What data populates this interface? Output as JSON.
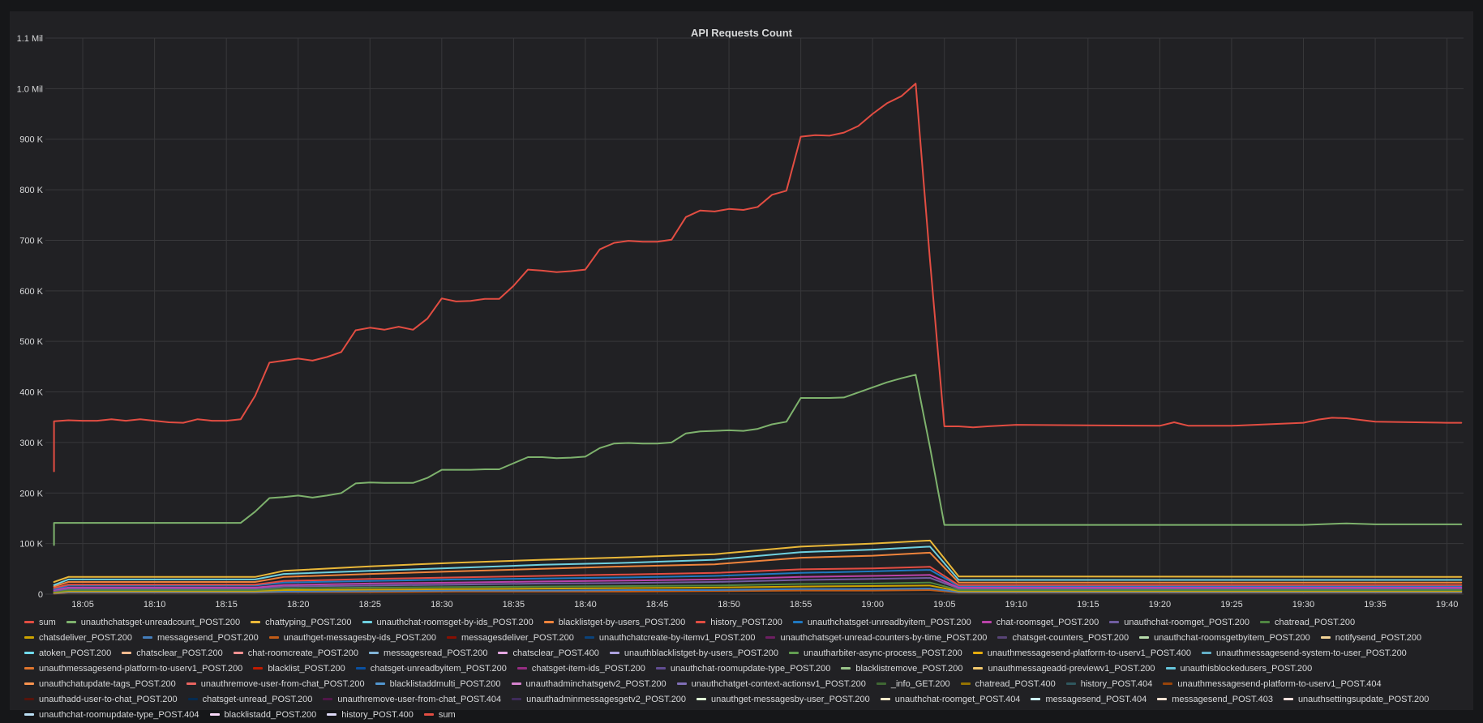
{
  "panel": {
    "title": "API Requests Count"
  },
  "chart_data": {
    "type": "line",
    "title": "API Requests Count",
    "xlabel": "",
    "ylabel": "",
    "ylim": [
      0,
      1100000
    ],
    "y_ticks": [
      {
        "value": 0,
        "label": "0"
      },
      {
        "value": 100000,
        "label": "100 K"
      },
      {
        "value": 200000,
        "label": "200 K"
      },
      {
        "value": 300000,
        "label": "300 K"
      },
      {
        "value": 400000,
        "label": "400 K"
      },
      {
        "value": 500000,
        "label": "500 K"
      },
      {
        "value": 600000,
        "label": "600 K"
      },
      {
        "value": 700000,
        "label": "700 K"
      },
      {
        "value": 800000,
        "label": "800 K"
      },
      {
        "value": 900000,
        "label": "900 K"
      },
      {
        "value": 1000000,
        "label": "1.0 Mil"
      },
      {
        "value": 1100000,
        "label": "1.1 Mil"
      }
    ],
    "xlim": [
      "18:03",
      "19:41"
    ],
    "x_ticks": [
      "18:05",
      "18:10",
      "18:15",
      "18:20",
      "18:25",
      "18:30",
      "18:35",
      "18:40",
      "18:45",
      "18:50",
      "18:55",
      "19:00",
      "19:05",
      "19:10",
      "19:15",
      "19:20",
      "19:25",
      "19:30",
      "19:35",
      "19:40"
    ],
    "grid": true,
    "legend_position": "bottom",
    "x_unit": "HH:MM",
    "series": [
      {
        "name": "sum",
        "color": "#e24d42",
        "x": [
          "18:03",
          "18:03",
          "18:04",
          "18:05",
          "18:06",
          "18:07",
          "18:08",
          "18:09",
          "18:10",
          "18:11",
          "18:12",
          "18:13",
          "18:14",
          "18:15",
          "18:16",
          "18:17",
          "18:18",
          "18:19",
          "18:20",
          "18:21",
          "18:22",
          "18:23",
          "18:24",
          "18:25",
          "18:26",
          "18:27",
          "18:28",
          "18:29",
          "18:30",
          "18:31",
          "18:32",
          "18:33",
          "18:34",
          "18:35",
          "18:36",
          "18:37",
          "18:38",
          "18:39",
          "18:40",
          "18:41",
          "18:42",
          "18:43",
          "18:44",
          "18:45",
          "18:46",
          "18:47",
          "18:48",
          "18:49",
          "18:50",
          "18:51",
          "18:52",
          "18:53",
          "18:54",
          "18:55",
          "18:56",
          "18:57",
          "18:58",
          "18:59",
          "19:00",
          "19:01",
          "19:02",
          "19:03",
          "19:04",
          "19:05",
          "19:06",
          "19:07",
          "19:08",
          "19:10",
          "19:15",
          "19:20",
          "19:21",
          "19:22",
          "19:25",
          "19:30",
          "19:31",
          "19:32",
          "19:33",
          "19:35",
          "19:40",
          "19:41"
        ],
        "y": [
          243000,
          342000,
          344000,
          343000,
          343000,
          346000,
          343000,
          346000,
          343000,
          340000,
          339000,
          346000,
          343000,
          343000,
          346000,
          392000,
          458000,
          462000,
          466000,
          462000,
          469000,
          479000,
          522000,
          527000,
          523000,
          529000,
          523000,
          545000,
          585000,
          579000,
          580000,
          584000,
          584000,
          610000,
          642000,
          640000,
          637000,
          639000,
          642000,
          682000,
          695000,
          699000,
          697000,
          697000,
          701000,
          746000,
          759000,
          757000,
          762000,
          760000,
          766000,
          790000,
          798000,
          905000,
          908000,
          907000,
          913000,
          926000,
          950000,
          971000,
          985000,
          1010000,
          660000,
          332000,
          332000,
          330000,
          332000,
          335000,
          334000,
          333000,
          340000,
          333000,
          333000,
          339000,
          345000,
          349000,
          348000,
          341000,
          339000,
          339000
        ]
      },
      {
        "name": "unauthchatsget-unreadcount_POST.200",
        "color": "#7eb26d",
        "x": [
          "18:03",
          "18:03",
          "18:04",
          "18:05",
          "18:10",
          "18:15",
          "18:16",
          "18:17",
          "18:18",
          "18:19",
          "18:20",
          "18:21",
          "18:22",
          "18:23",
          "18:24",
          "18:25",
          "18:26",
          "18:27",
          "18:28",
          "18:29",
          "18:30",
          "18:31",
          "18:32",
          "18:33",
          "18:34",
          "18:35",
          "18:36",
          "18:37",
          "18:38",
          "18:39",
          "18:40",
          "18:41",
          "18:42",
          "18:43",
          "18:44",
          "18:45",
          "18:46",
          "18:47",
          "18:48",
          "18:49",
          "18:50",
          "18:51",
          "18:52",
          "18:53",
          "18:54",
          "18:55",
          "18:56",
          "18:57",
          "18:58",
          "18:59",
          "19:00",
          "19:01",
          "19:02",
          "19:03",
          "19:04",
          "19:05",
          "19:06",
          "19:10",
          "19:20",
          "19:30",
          "19:33",
          "19:35",
          "19:41"
        ],
        "y": [
          97000,
          141000,
          141000,
          141000,
          141000,
          141000,
          141000,
          163000,
          190000,
          192000,
          195000,
          191000,
          195000,
          200000,
          219000,
          221000,
          220000,
          220000,
          220000,
          230000,
          246000,
          246000,
          246000,
          247000,
          247000,
          259000,
          271000,
          271000,
          269000,
          270000,
          272000,
          289000,
          298000,
          299000,
          298000,
          298000,
          300000,
          318000,
          322000,
          323000,
          324000,
          323000,
          327000,
          336000,
          341000,
          388000,
          388000,
          388000,
          389000,
          399000,
          409000,
          419000,
          427000,
          434000,
          290000,
          137000,
          137000,
          137000,
          137000,
          137000,
          140000,
          138000,
          138000
        ]
      },
      {
        "name": "chattyping_POST.200",
        "color": "#eab839",
        "x": [
          "18:03",
          "18:04",
          "18:17",
          "18:19",
          "18:25",
          "18:31",
          "18:37",
          "18:43",
          "18:49",
          "18:55",
          "19:00",
          "19:04",
          "19:06",
          "19:41"
        ],
        "y": [
          24000,
          34000,
          34000,
          46000,
          55000,
          62000,
          68000,
          73000,
          79000,
          94000,
          100000,
          106000,
          35000,
          34000
        ]
      },
      {
        "name": "unauthchat-roomsget-by-ids_POST.200",
        "color": "#6ed0e0",
        "x": [
          "18:03",
          "18:04",
          "18:17",
          "18:19",
          "18:25",
          "18:31",
          "18:37",
          "18:43",
          "18:49",
          "18:55",
          "19:00",
          "19:04",
          "19:06",
          "19:41"
        ],
        "y": [
          18000,
          29000,
          29000,
          40000,
          46000,
          52000,
          58000,
          62000,
          68000,
          83000,
          88000,
          94000,
          28000,
          28000
        ]
      },
      {
        "name": "blacklistget-by-users_POST.200",
        "color": "#ef843c",
        "x": [
          "18:03",
          "18:04",
          "18:17",
          "18:19",
          "18:25",
          "18:31",
          "18:37",
          "18:43",
          "18:49",
          "18:55",
          "19:00",
          "19:04",
          "19:06",
          "19:41"
        ],
        "y": [
          15000,
          24000,
          24000,
          34000,
          40000,
          45000,
          50000,
          55000,
          59000,
          72000,
          76000,
          82000,
          23000,
          23000
        ]
      },
      {
        "name": "history_POST.200",
        "color": "#e24d42",
        "x": [
          "18:03",
          "18:04",
          "18:17",
          "18:19",
          "18:25",
          "18:31",
          "18:37",
          "18:43",
          "18:49",
          "18:55",
          "19:00",
          "19:04",
          "19:06",
          "19:41"
        ],
        "y": [
          12000,
          19000,
          19000,
          26000,
          30000,
          33000,
          36000,
          39000,
          42000,
          49000,
          51000,
          54000,
          18000,
          18000
        ]
      },
      {
        "name": "unauthchatsget-unreadbyitem_POST.200",
        "color": "#1f78c1",
        "x": [
          "18:03",
          "18:04",
          "18:17",
          "18:19",
          "18:25",
          "18:31",
          "18:37",
          "18:43",
          "18:49",
          "18:55",
          "19:00",
          "19:04",
          "19:06",
          "19:41"
        ],
        "y": [
          10000,
          17000,
          17000,
          23000,
          26000,
          29000,
          31000,
          33000,
          36000,
          42000,
          45000,
          48000,
          16000,
          16000
        ]
      },
      {
        "name": "chat-roomsget_POST.200",
        "color": "#ba43a9",
        "x": [
          "18:03",
          "18:04",
          "18:17",
          "18:19",
          "18:25",
          "18:31",
          "18:37",
          "18:43",
          "18:49",
          "18:55",
          "19:00",
          "19:04",
          "19:06",
          "19:41"
        ],
        "y": [
          8000,
          13000,
          13000,
          18000,
          21000,
          23000,
          25000,
          27000,
          29000,
          34000,
          36000,
          38000,
          13000,
          13000
        ]
      },
      {
        "name": "unauthchat-roomget_POST.200",
        "color": "#705da0",
        "x": [
          "18:03",
          "18:04",
          "18:17",
          "18:19",
          "18:25",
          "18:31",
          "18:37",
          "18:43",
          "18:49",
          "18:55",
          "19:00",
          "19:04",
          "19:06",
          "19:41"
        ],
        "y": [
          6000,
          11000,
          11000,
          15000,
          17000,
          19000,
          21000,
          22000,
          24000,
          28000,
          30000,
          32000,
          11000,
          11000
        ]
      },
      {
        "name": "chatread_POST.200",
        "color": "#508642",
        "x": [
          "18:03",
          "18:04",
          "18:17",
          "18:19",
          "18:25",
          "18:31",
          "18:37",
          "18:43",
          "18:49",
          "18:55",
          "19:00",
          "19:04",
          "19:06",
          "19:41"
        ],
        "y": [
          5000,
          8000,
          8000,
          11000,
          13000,
          14000,
          15000,
          16000,
          17000,
          20000,
          21000,
          23000,
          8000,
          8000
        ]
      },
      {
        "name": "chatsdeliver_POST.200",
        "color": "#cca300",
        "x": [
          "18:03",
          "18:04",
          "18:17",
          "18:19",
          "18:25",
          "18:31",
          "18:37",
          "18:43",
          "18:49",
          "18:55",
          "19:00",
          "19:04",
          "19:06",
          "19:41"
        ],
        "y": [
          3000,
          6000,
          6000,
          8000,
          9000,
          10000,
          11000,
          12000,
          13000,
          15000,
          16000,
          17000,
          6000,
          6000
        ]
      },
      {
        "name": "messagesend_POST.200",
        "color": "#447ebc",
        "x": [
          "18:03",
          "18:04",
          "18:17",
          "18:19",
          "18:25",
          "18:31",
          "18:37",
          "18:43",
          "18:49",
          "18:55",
          "19:00",
          "19:04",
          "19:06",
          "19:41"
        ],
        "y": [
          2000,
          4000,
          4000,
          5000,
          6000,
          7000,
          7000,
          8000,
          8000,
          10000,
          10000,
          11000,
          4000,
          4000
        ]
      },
      {
        "name": "unauthget-messagesby-ids_POST.200",
        "color": "#c15c17",
        "x": [
          "18:03",
          "18:04",
          "18:17",
          "18:19",
          "18:25",
          "18:31",
          "18:37",
          "18:43",
          "18:49",
          "18:55",
          "19:00",
          "19:04",
          "19:06",
          "19:41"
        ],
        "y": [
          1000,
          3000,
          3000,
          4000,
          4000,
          5000,
          5000,
          5000,
          6000,
          7000,
          7000,
          8000,
          3000,
          3000
        ]
      },
      {
        "name": "messagesdeliver_POST.200",
        "color": "#890f02"
      },
      {
        "name": "unauthchatcreate-by-itemv1_POST.200",
        "color": "#0a437c"
      },
      {
        "name": "unauthchatsget-unread-counters-by-time_POST.200",
        "color": "#6d1f62"
      },
      {
        "name": "chatsget-counters_POST.200",
        "color": "#584477"
      },
      {
        "name": "unauthchat-roomsgetbyitem_POST.200",
        "color": "#b7dbab"
      },
      {
        "name": "notifysend_POST.200",
        "color": "#f4d598"
      },
      {
        "name": "atoken_POST.200",
        "color": "#70dbed"
      },
      {
        "name": "chatsclear_POST.200",
        "color": "#f9ba8f"
      },
      {
        "name": "chat-roomcreate_POST.200",
        "color": "#f29191"
      },
      {
        "name": "messagesread_POST.200",
        "color": "#82b5d8"
      },
      {
        "name": "chatsclear_POST.400",
        "color": "#e5a8e2"
      },
      {
        "name": "unauthblacklistget-by-users_POST.200",
        "color": "#aea2e0"
      },
      {
        "name": "unautharbiter-async-process_POST.200",
        "color": "#629e51"
      },
      {
        "name": "unauthmessagesend-platform-to-userv1_POST.400",
        "color": "#e5ac0e"
      },
      {
        "name": "unauthmessagesend-system-to-user_POST.200",
        "color": "#64b0c8"
      },
      {
        "name": "unauthmessagesend-platform-to-userv1_POST.200",
        "color": "#e0752d"
      },
      {
        "name": "blacklist_POST.200",
        "color": "#bf1b00"
      },
      {
        "name": "chatsget-unreadbyitem_POST.200",
        "color": "#0a50a1"
      },
      {
        "name": "chatsget-item-ids_POST.200",
        "color": "#962d82"
      },
      {
        "name": "unauthchat-roomupdate-type_POST.200",
        "color": "#614d93"
      },
      {
        "name": "blacklistremove_POST.200",
        "color": "#9ac48a"
      },
      {
        "name": "unauthmessageadd-previewv1_POST.200",
        "color": "#f2c96d"
      },
      {
        "name": "unauthisblockedusers_POST.200",
        "color": "#65c5db"
      },
      {
        "name": "unauthchatupdate-tags_POST.200",
        "color": "#f9934e"
      },
      {
        "name": "unauthremove-user-from-chat_POST.200",
        "color": "#ea6460"
      },
      {
        "name": "blacklistaddmulti_POST.200",
        "color": "#5195ce"
      },
      {
        "name": "unauthadminchatsgetv2_POST.200",
        "color": "#d683ce"
      },
      {
        "name": "unauthchatget-context-actionsv1_POST.200",
        "color": "#806eb7"
      },
      {
        "name": "_info_GET.200",
        "color": "#3f6833"
      },
      {
        "name": "chatread_POST.400",
        "color": "#967302"
      },
      {
        "name": "history_POST.404",
        "color": "#2f575e"
      },
      {
        "name": "unauthmessagesend-platform-to-userv1_POST.404",
        "color": "#99440a"
      },
      {
        "name": "unauthadd-user-to-chat_POST.200",
        "color": "#58140c"
      },
      {
        "name": "chatsget-unread_POST.200",
        "color": "#052b51"
      },
      {
        "name": "unauthremove-user-from-chat_POST.404",
        "color": "#511749"
      },
      {
        "name": "unauthadminmessagesgetv2_POST.200",
        "color": "#3f2b5b"
      },
      {
        "name": "unauthget-messagesby-user_POST.200",
        "color": "#e0f9d7"
      },
      {
        "name": "unauthchat-roomget_POST.404",
        "color": "#fceaca"
      },
      {
        "name": "messagesend_POST.404",
        "color": "#cffaff"
      },
      {
        "name": "messagesend_POST.403",
        "color": "#f9e2d2"
      },
      {
        "name": "unauthsettingsupdate_POST.200",
        "color": "#fce2de"
      },
      {
        "name": "unauthchat-roomupdate-type_POST.404",
        "color": "#badff4"
      },
      {
        "name": "blacklistadd_POST.200",
        "color": "#f9d9f9"
      },
      {
        "name": "history_POST.400",
        "color": "#dedaf7"
      },
      {
        "name": "sum",
        "color": "#e24d42"
      }
    ]
  }
}
